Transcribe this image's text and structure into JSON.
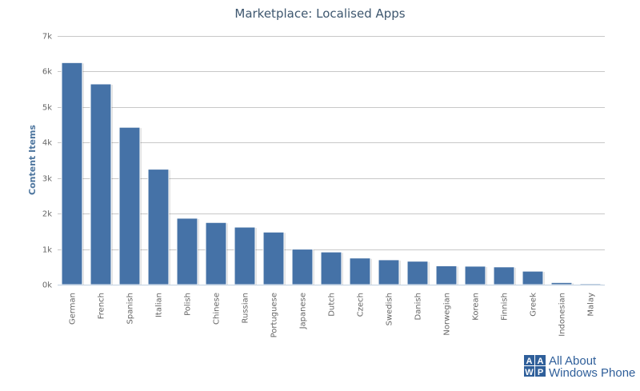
{
  "chart_data": {
    "type": "bar",
    "title": "Marketplace: Localised Apps",
    "xlabel": "",
    "ylabel": "Content Items",
    "ylim": [
      0,
      7000
    ],
    "yticks": [
      0,
      1000,
      2000,
      3000,
      4000,
      5000,
      6000,
      7000
    ],
    "ytick_labels": [
      "0k",
      "1k",
      "2k",
      "3k",
      "4k",
      "5k",
      "6k",
      "7k"
    ],
    "grid": true,
    "legend": "none",
    "bar_color": "#4572a7",
    "categories": [
      "German",
      "French",
      "Spanish",
      "Italian",
      "Polish",
      "Chinese",
      "Russian",
      "Portuguese",
      "Japanese",
      "Dutch",
      "Czech",
      "Swedish",
      "Danish",
      "Norwegian",
      "Korean",
      "Finnish",
      "Greek",
      "Indonesian",
      "Malay"
    ],
    "values": [
      6250,
      5650,
      4430,
      3250,
      1870,
      1750,
      1620,
      1480,
      1000,
      920,
      750,
      700,
      660,
      530,
      520,
      500,
      380,
      60,
      30
    ]
  },
  "logo": {
    "letters": [
      "A",
      "A",
      "W",
      "P"
    ],
    "line1": "All About",
    "line2": "Windows Phone",
    "color": "#2f5f9a"
  }
}
